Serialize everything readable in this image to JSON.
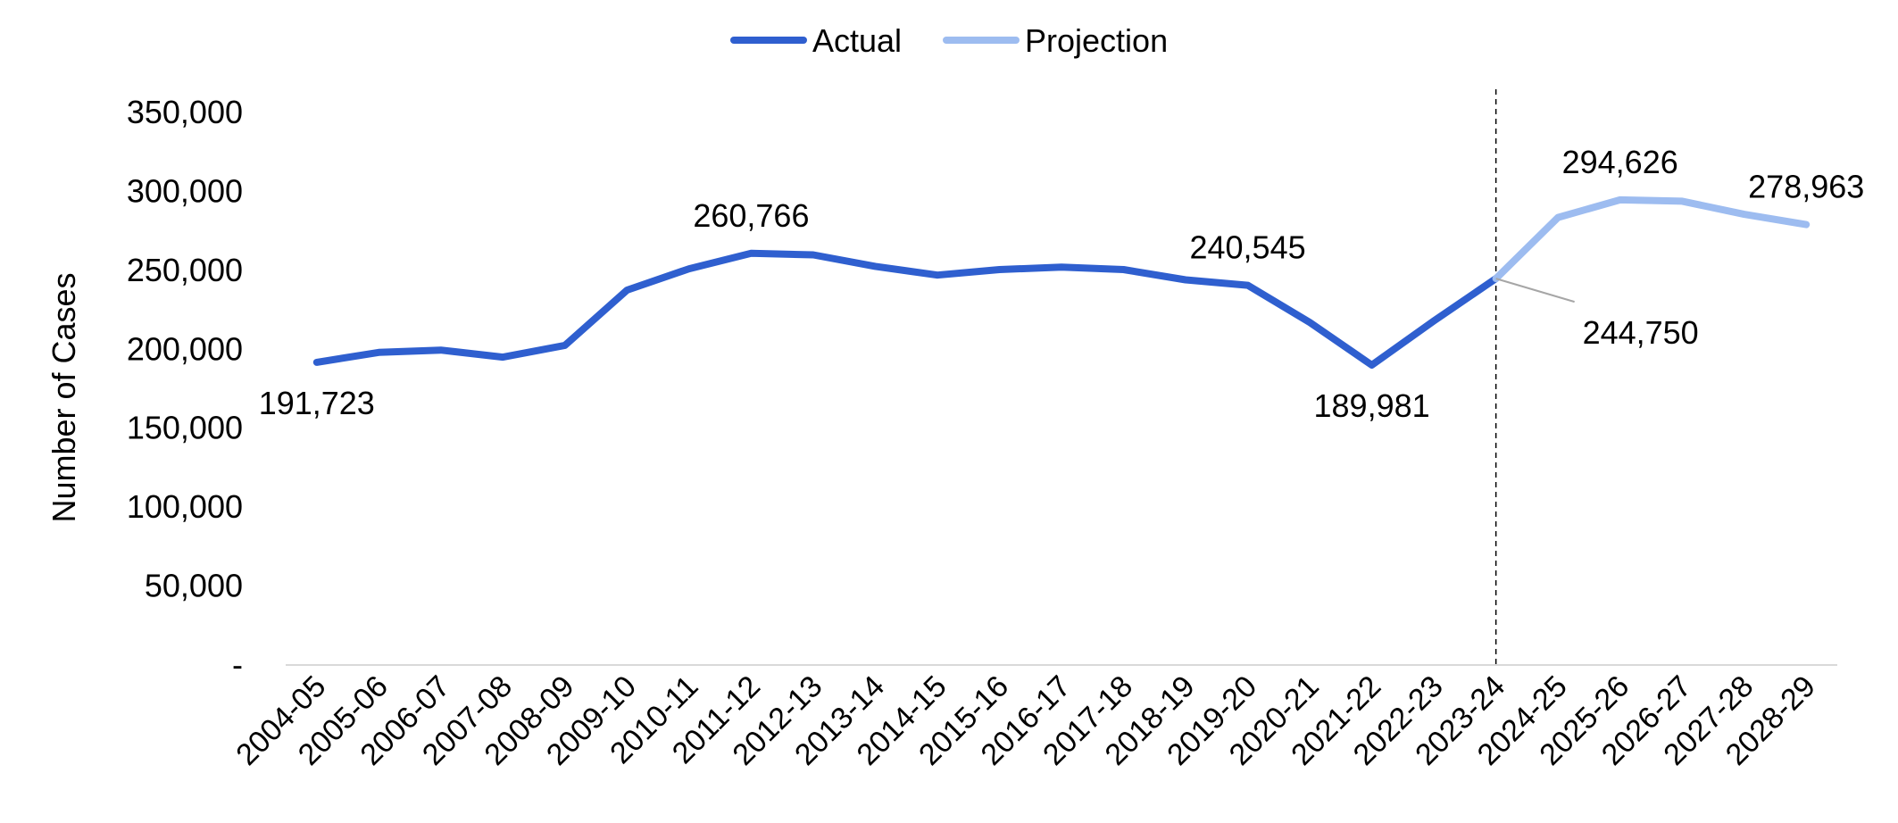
{
  "chart_data": {
    "type": "line",
    "title": "",
    "xlabel": "",
    "ylabel": "Number of Cases",
    "ylim": [
      0,
      350000
    ],
    "y_ticks": [
      0,
      50000,
      100000,
      150000,
      200000,
      250000,
      300000,
      350000
    ],
    "y_tick_labels": [
      "-",
      "50,000",
      "100,000",
      "150,000",
      "200,000",
      "250,000",
      "300,000",
      "350,000"
    ],
    "grid": false,
    "legend_position": "top-center",
    "categories": [
      "2004-05",
      "2005-06",
      "2006-07",
      "2007-08",
      "2008-09",
      "2009-10",
      "2010-11",
      "2011-12",
      "2012-13",
      "2013-14",
      "2014-15",
      "2015-16",
      "2016-17",
      "2017-18",
      "2018-19",
      "2019-20",
      "2020-21",
      "2021-22",
      "2022-23",
      "2023-24",
      "2024-25",
      "2025-26",
      "2026-27",
      "2027-28",
      "2028-29"
    ],
    "series": [
      {
        "name": "Actual",
        "color": "#2f5fcf",
        "values": [
          191723,
          198000,
          199500,
          195000,
          202500,
          237500,
          251000,
          260766,
          259800,
          252500,
          247000,
          250500,
          252000,
          250500,
          244000,
          240545,
          217000,
          189981,
          218000,
          244750,
          null,
          null,
          null,
          null,
          null
        ]
      },
      {
        "name": "Projection",
        "color": "#9dbcf0",
        "values": [
          null,
          null,
          null,
          null,
          null,
          null,
          null,
          null,
          null,
          null,
          null,
          null,
          null,
          null,
          null,
          null,
          null,
          null,
          null,
          244750,
          283500,
          294626,
          293800,
          285500,
          278963
        ]
      }
    ],
    "annotations": [
      {
        "text": "191,723",
        "category": "2004-05",
        "value": 191723,
        "placement": "below"
      },
      {
        "text": "260,766",
        "category": "2011-12",
        "value": 260766,
        "placement": "above"
      },
      {
        "text": "240,545",
        "category": "2019-20",
        "value": 240545,
        "placement": "above"
      },
      {
        "text": "189,981",
        "category": "2021-22",
        "value": 189981,
        "placement": "below"
      },
      {
        "text": "244,750",
        "category": "2023-24",
        "value": 244750,
        "placement": "below-right-leader"
      },
      {
        "text": "294,626",
        "category": "2025-26",
        "value": 294626,
        "placement": "above"
      },
      {
        "text": "278,963",
        "category": "2028-29",
        "value": 278963,
        "placement": "above"
      }
    ],
    "divider_after_category": "2023-24"
  }
}
